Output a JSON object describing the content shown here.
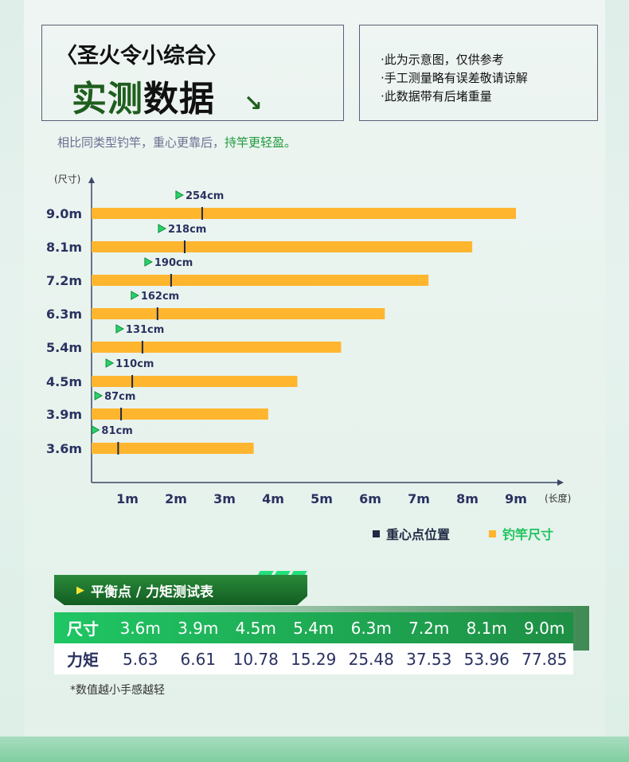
{
  "header": {
    "brand": "〈圣火令小综合〉",
    "title_green": "实测",
    "title_black": "数据",
    "arrow_icon": "↘"
  },
  "notes": [
    "·此为示意图，仅供参考",
    "·手工测量略有误差敬请谅解",
    "·此数据带有后堵重量"
  ],
  "subtitle": {
    "plain": "相比同类型钓竿，重心更靠后，",
    "highlight": "持竿更轻盈。"
  },
  "chart_data": {
    "type": "bar",
    "orientation": "horizontal",
    "ylabel": "(尺寸)",
    "xlabel": "(长度)",
    "categories": [
      "9.0m",
      "8.1m",
      "7.2m",
      "6.3m",
      "5.4m",
      "4.5m",
      "3.9m",
      "3.6m"
    ],
    "series": [
      {
        "name": "钓竿尺寸",
        "unit": "m",
        "values": [
          9.0,
          8.1,
          7.2,
          6.3,
          5.4,
          4.5,
          3.9,
          3.6
        ],
        "color": "#ffb52e"
      },
      {
        "name": "重心点位置",
        "unit": "cm",
        "values": [
          254,
          218,
          190,
          162,
          131,
          110,
          87,
          81
        ],
        "labels": [
          "254cm",
          "218cm",
          "190cm",
          "162cm",
          "131cm",
          "110cm",
          "87cm",
          "81cm"
        ],
        "color": "#1f2a44"
      }
    ],
    "xticks": [
      "1m",
      "2m",
      "3m",
      "4m",
      "5m",
      "6m",
      "7m",
      "8m",
      "9m"
    ],
    "xlim": [
      0,
      9.5
    ],
    "legend": [
      "重心点位置",
      "钓竿尺寸"
    ],
    "legend_position": "bottom-right"
  },
  "table": {
    "title": "平衡点 / 力矩测试表",
    "row1_header": "尺寸",
    "sizes": [
      "3.6m",
      "3.9m",
      "4.5m",
      "5.4m",
      "6.3m",
      "7.2m",
      "8.1m",
      "9.0m"
    ],
    "row2_header": "力矩",
    "moments": [
      "5.63",
      "6.61",
      "10.78",
      "15.29",
      "25.48",
      "37.53",
      "53.96",
      "77.85"
    ],
    "footnote": "*数值越小手感越轻"
  }
}
